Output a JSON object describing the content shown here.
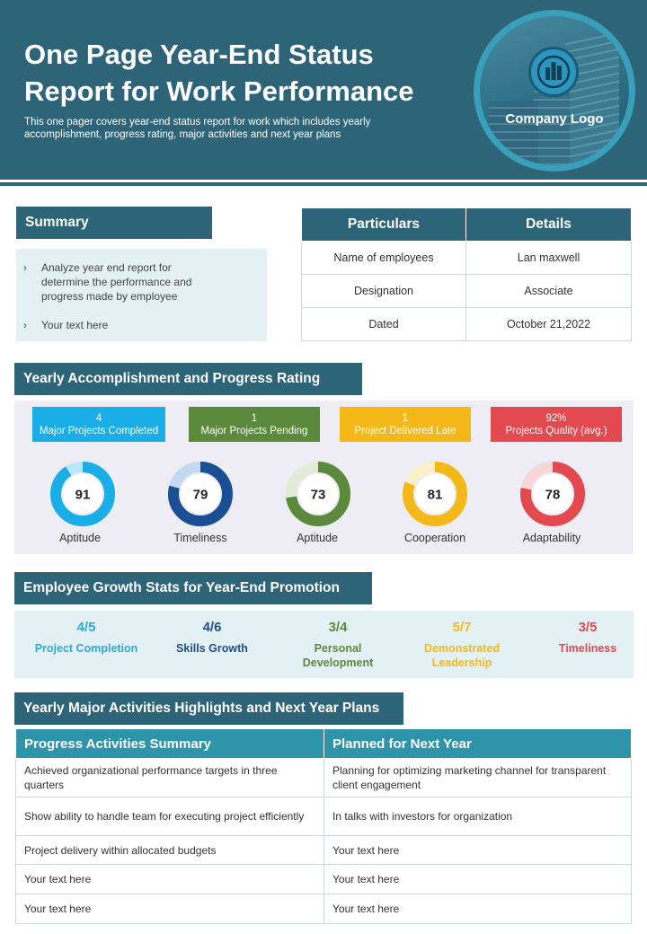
{
  "header": {
    "title": "One Page Year-End Status Report for Work Performance",
    "subtitle": "This one pager covers year-end status report for work which includes yearly accomplishment, progress rating, major activities and next year plans",
    "logo_text": "Company Logo"
  },
  "summary": {
    "heading": "Summary",
    "items": [
      "Analyze year end report for determine the performance and progress made by employee",
      "Your text here"
    ]
  },
  "particulars": {
    "headers": [
      "Particulars",
      "Details"
    ],
    "rows": [
      [
        "Name of employees",
        "Lan maxwell"
      ],
      [
        "Designation",
        "Associate"
      ],
      [
        "Dated",
        "October 21,2022"
      ]
    ]
  },
  "accomplishment": {
    "heading": "Yearly Accomplishment and Progress  Rating",
    "badges": [
      {
        "value": "4",
        "label": "Major Projects Completed",
        "color": "#1aaee8"
      },
      {
        "value": "1",
        "label": "Major Projects Pending",
        "color": "#5b8a3c"
      },
      {
        "value": "1",
        "label": "Project Delivered Late",
        "color": "#f4b919"
      },
      {
        "value": "92%",
        "label": "Projects Quality (avg.)",
        "color": "#e24a50"
      }
    ],
    "ratings": [
      {
        "value": 91,
        "label": "Aptitude",
        "color": "#1aaee8",
        "track": "#bde6f7"
      },
      {
        "value": 79,
        "label": "Timeliness",
        "color": "#1a4f96",
        "track": "#c3d9f1"
      },
      {
        "value": 73,
        "label": "Aptitude",
        "color": "#5b8a3c",
        "track": "#e2ecd9"
      },
      {
        "value": 81,
        "label": "Cooperation",
        "color": "#f4b919",
        "track": "#fbf0c8"
      },
      {
        "value": 78,
        "label": "Adaptability",
        "color": "#e24a50",
        "track": "#f8d6d7"
      }
    ]
  },
  "growth": {
    "heading": "Employee Growth Stats for Year-End Promotion",
    "stats": [
      {
        "value": "4/5",
        "label": "Project Completion",
        "color": "#2fa8d8"
      },
      {
        "value": "4/6",
        "label": "Skills Growth",
        "color": "#1f4e8c"
      },
      {
        "value": "3/4",
        "label": "Personal Development",
        "color": "#5b8a3c"
      },
      {
        "value": "5/7",
        "label": "Demonstrated Leadership",
        "color": "#f4b919"
      },
      {
        "value": "3/5",
        "label": "Timeliness",
        "color": "#e24a50"
      }
    ]
  },
  "activities": {
    "heading": "Yearly Major Activities Highlights and Next Year Plans",
    "headers": [
      "Progress  Activities Summary",
      "Planned for Next Year"
    ],
    "rows": [
      [
        "Achieved organizational performance targets in three quarters",
        "Planning for optimizing marketing channel for transparent client engagement"
      ],
      [
        "Show ability to handle team for executing project efficiently",
        "In talks with investors for organization"
      ],
      [
        "Project delivery within allocated budgets",
        "Your text here"
      ],
      [
        "Your text here",
        "Your text here"
      ],
      [
        "Your text here",
        "Your text here"
      ]
    ]
  }
}
